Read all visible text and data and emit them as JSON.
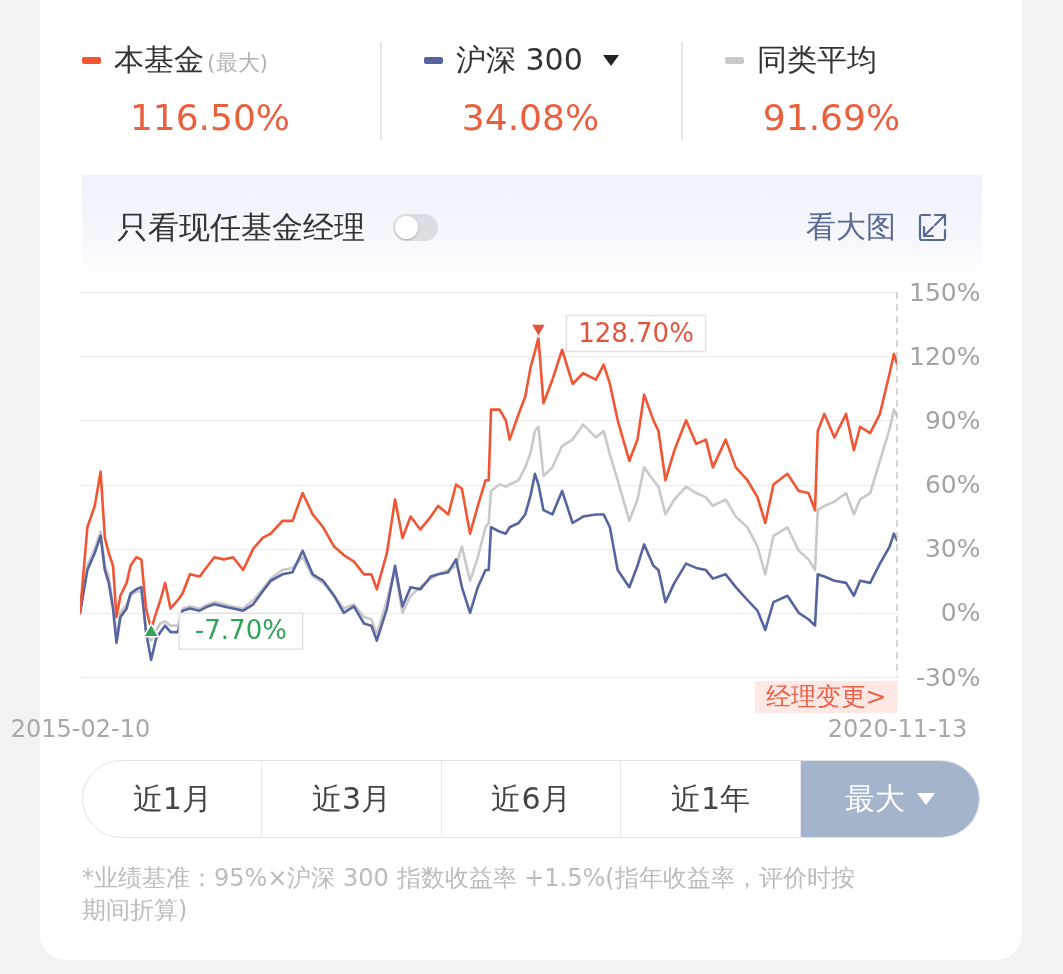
{
  "chart_data": {
    "type": "line",
    "x": [
      "2015-02-10",
      "2015-03-01",
      "2015-03-20",
      "2015-04-04",
      "2015-04-15",
      "2015-04-25",
      "2015-05-06",
      "2015-05-15",
      "2015-05-25",
      "2015-06-10",
      "2015-06-20",
      "2015-07-05",
      "2015-07-18",
      "2015-07-30",
      "2015-08-12",
      "2015-08-25",
      "2015-09-05",
      "2015-09-17",
      "2015-10-01",
      "2015-10-20",
      "2015-11-01",
      "2015-11-20",
      "2015-12-15",
      "2016-01-05",
      "2016-01-22",
      "2016-02-15",
      "2016-03-10",
      "2016-04-05",
      "2016-05-01",
      "2016-05-25",
      "2016-06-15",
      "2016-07-15",
      "2016-08-10",
      "2016-09-05",
      "2016-10-01",
      "2016-10-28",
      "2016-11-25",
      "2016-12-20",
      "2017-01-15",
      "2017-02-10",
      "2017-03-01",
      "2017-03-15",
      "2017-04-10",
      "2017-05-01",
      "2017-05-20",
      "2017-06-10",
      "2017-07-05",
      "2017-08-01",
      "2017-08-20",
      "2017-09-15",
      "2017-10-05",
      "2017-10-20",
      "2017-11-10",
      "2017-11-30",
      "2017-12-20",
      "2017-12-28",
      "2018-01-03",
      "2018-01-25",
      "2018-02-10",
      "2018-02-20",
      "2018-03-15",
      "2018-04-01",
      "2018-04-15",
      "2018-04-26",
      "2018-05-05",
      "2018-05-18",
      "2018-06-10",
      "2018-07-05",
      "2018-08-01",
      "2018-08-28",
      "2018-09-30",
      "2018-10-20",
      "2018-11-05",
      "2018-11-25",
      "2018-12-25",
      "2019-01-15",
      "2019-02-01",
      "2019-02-25",
      "2019-03-10",
      "2019-03-28",
      "2019-04-20",
      "2019-05-20",
      "2019-06-15",
      "2019-07-10",
      "2019-07-28",
      "2019-08-30",
      "2019-09-25",
      "2019-10-25",
      "2019-11-20",
      "2019-12-10",
      "2019-12-31",
      "2020-02-05",
      "2020-03-05",
      "2020-03-30",
      "2020-04-16",
      "2020-04-23",
      "2020-05-10",
      "2020-06-05",
      "2020-07-05",
      "2020-07-25",
      "2020-08-10",
      "2020-09-05",
      "2020-09-30",
      "2020-10-25",
      "2020-11-05",
      "2020-11-13"
    ],
    "series": [
      {
        "name": "本基金",
        "color": "#f25533",
        "values": [
          0,
          40,
          50,
          66,
          35,
          28,
          22,
          -2,
          8,
          14,
          22,
          26,
          25,
          2,
          -7.7,
          0,
          6,
          14,
          2,
          6,
          9,
          18,
          17,
          22,
          26,
          25,
          26,
          20,
          30,
          35,
          37,
          43,
          43,
          56,
          46,
          40,
          31,
          27,
          24,
          18,
          18,
          11,
          28,
          53,
          35,
          45,
          39,
          45,
          50,
          46,
          60,
          58,
          37,
          50,
          62,
          62,
          95,
          95,
          90,
          81,
          93,
          101,
          115,
          122,
          128.7,
          98,
          109,
          123,
          107,
          112,
          109,
          116,
          107,
          90,
          71,
          81,
          102,
          90,
          85,
          62,
          76,
          90,
          79,
          81,
          68,
          81,
          68,
          62,
          54,
          42,
          60,
          65,
          57,
          56,
          48,
          85,
          93,
          82,
          93,
          76,
          87,
          84,
          93,
          112,
          121,
          116.5
        ]
      },
      {
        "name": "沪深 300",
        "color": "#56649f",
        "values": [
          0,
          20,
          28,
          36,
          20,
          14,
          2,
          -14,
          -2,
          2,
          9,
          11,
          12,
          -9,
          -22,
          -12,
          -9,
          -6,
          -9,
          -9,
          1,
          2,
          1,
          3,
          4,
          3,
          2,
          1,
          4,
          10,
          15,
          18,
          19,
          29,
          18,
          15,
          8,
          0,
          3,
          -5,
          -6,
          -13,
          2,
          22,
          3,
          12,
          11,
          17,
          18,
          19,
          25,
          12,
          0,
          12,
          20,
          20,
          40,
          38,
          37,
          40,
          42,
          46,
          55,
          65,
          60,
          48,
          46,
          57,
          42,
          45,
          46,
          46,
          40,
          20,
          12,
          22,
          32,
          22,
          20,
          5,
          14,
          23,
          21,
          20,
          16,
          18,
          12,
          6,
          1,
          -8,
          5,
          8,
          0,
          -3,
          -6,
          18,
          17,
          15,
          14,
          8,
          15,
          14,
          23,
          31,
          37,
          34
        ]
      },
      {
        "name": "同类平均",
        "color": "#c9c9c9",
        "values": [
          0,
          22,
          30,
          38,
          22,
          17,
          4,
          -12,
          0,
          4,
          8,
          10,
          10,
          -8,
          -13,
          -8,
          -5,
          -4,
          -6,
          -6,
          2,
          3,
          2,
          4,
          5,
          4,
          3,
          2,
          6,
          11,
          16,
          20,
          21,
          26,
          17,
          14,
          8,
          2,
          4,
          -2,
          -3,
          -10,
          6,
          20,
          0,
          8,
          12,
          16,
          18,
          20,
          22,
          31,
          15,
          26,
          40,
          42,
          57,
          60,
          59,
          60,
          62,
          68,
          75,
          85,
          87,
          64,
          68,
          78,
          81,
          88,
          82,
          85,
          74,
          62,
          43,
          53,
          68,
          62,
          59,
          46,
          53,
          59,
          56,
          54,
          50,
          53,
          45,
          40,
          31,
          18,
          36,
          40,
          29,
          25,
          20,
          48,
          50,
          52,
          56,
          46,
          53,
          56,
          71,
          86,
          95,
          92
        ]
      }
    ],
    "xlim": [
      "2015-02-10",
      "2020-11-13"
    ],
    "xticks": [
      "2015-02-10",
      "2020-11-13"
    ],
    "ylim": [
      -30,
      150
    ],
    "yticks": [
      {
        "value": -30,
        "label": "-30%"
      },
      {
        "value": 0,
        "label": "0%"
      },
      {
        "value": 30,
        "label": "30%"
      },
      {
        "value": 60,
        "label": "60%"
      },
      {
        "value": 90,
        "label": "90%"
      },
      {
        "value": 120,
        "label": "120%"
      },
      {
        "value": 150,
        "label": "150%"
      }
    ],
    "grid": "y",
    "legend": "top",
    "ref_lines": [
      {
        "axis": "x",
        "value": "2020-11-13",
        "color": "#bbbbbb",
        "line_style": "dashed"
      }
    ],
    "annotations": [
      "(最大)",
      "116.50%",
      "34.08%",
      "91.69%",
      "只看现任基金经理",
      "看大图",
      {
        "text": "128.70%",
        "x": "2018-05-05",
        "y": 128.7
      },
      {
        "text": "-7.70%",
        "x": "2015-08-12",
        "y": -7.7
      },
      "经理变更>",
      "近1月",
      "近3月",
      "近6月",
      "近1年",
      "最大",
      "*业绩基准：95%×沪深 300 指数收益率 +1.5%(指年收益率，评价时按期间折算)"
    ]
  }
}
